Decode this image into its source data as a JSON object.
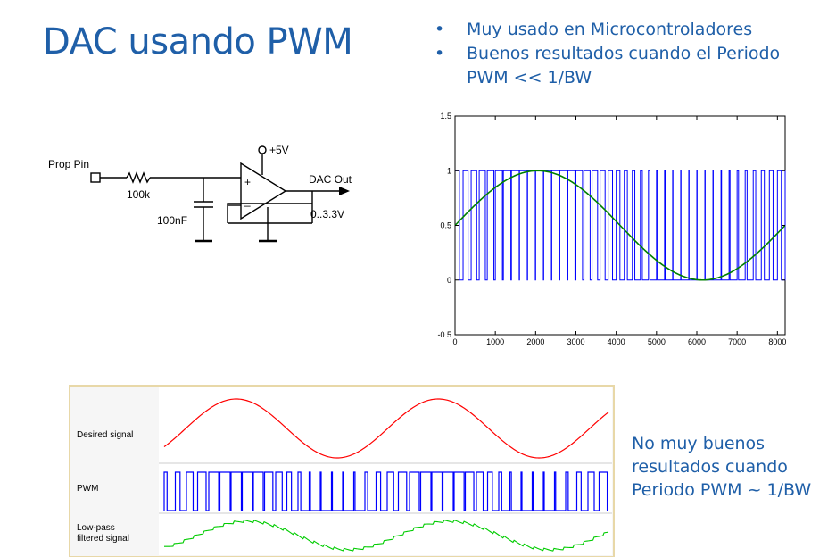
{
  "slide": {
    "title": "DAC usando PWM",
    "bullets": [
      "Muy usado en Microcontroladores",
      "Buenos resultados cuando el Periodo PWM << 1/BW"
    ],
    "note": "No muy buenos resultados cuando Periodo PWM ~ 1/BW"
  },
  "circuit": {
    "input_label": "Prop Pin",
    "resistor_label": "100k",
    "capacitor_label": "100nF",
    "supply_label": "+5V",
    "output_label": "DAC Out",
    "range_label": "0..3.3V",
    "plus_sign": "+",
    "minus_sign": "–"
  },
  "colors": {
    "accent": "#1f5fa8",
    "pwm": "#0000ff",
    "filtered_sine": "#008000",
    "desired": "#ff0000",
    "lowpass": "#00cc00"
  },
  "chart_data": [
    {
      "type": "line",
      "title": "",
      "xlabel": "",
      "ylabel": "",
      "xlim": [
        0,
        8192
      ],
      "ylim": [
        -0.5,
        1.5
      ],
      "x_ticks": [
        0,
        1000,
        2000,
        3000,
        4000,
        5000,
        6000,
        7000,
        8000
      ],
      "y_ticks": [
        -0.5,
        0,
        0.5,
        1,
        1.5
      ],
      "grid": false,
      "legend": "none",
      "series": [
        {
          "kind": "pwm",
          "color": "#0000ff",
          "x": [
            0,
            300,
            500,
            700,
            900,
            1100,
            1300,
            1500,
            1700,
            1900,
            2000,
            2100,
            2300,
            2500,
            2700,
            2900,
            3100,
            3300,
            3500,
            3700,
            3900,
            4100,
            4300,
            4500,
            4700,
            4900,
            5100,
            5300,
            5500,
            5700,
            5900,
            6100,
            6300,
            6500,
            6700,
            6900,
            7100,
            7300,
            7500,
            7700,
            7900,
            8192
          ],
          "values": [
            0.5,
            0.62,
            0.69,
            0.76,
            0.82,
            0.88,
            0.93,
            0.97,
            0.99,
            1.0,
            1.0,
            1.0,
            0.99,
            0.97,
            0.93,
            0.88,
            0.82,
            0.76,
            0.69,
            0.62,
            0.54,
            0.46,
            0.38,
            0.31,
            0.24,
            0.18,
            0.12,
            0.07,
            0.03,
            0.01,
            0.0,
            0.0,
            0.01,
            0.03,
            0.07,
            0.12,
            0.18,
            0.24,
            0.31,
            0.38,
            0.46,
            0.5
          ]
        },
        {
          "kind": "sine",
          "color": "#008000",
          "x": [
            0,
            1024,
            2048,
            3072,
            4096,
            5120,
            6144,
            7168,
            8192
          ],
          "values": [
            0.5,
            0.85,
            1.0,
            0.85,
            0.5,
            0.15,
            0.0,
            0.15,
            0.5
          ]
        }
      ]
    },
    {
      "type": "line",
      "title": "",
      "series_labels": [
        "Desired signal",
        "PWM",
        "Low-pass\nfiltered signal"
      ],
      "desired_signal": {
        "cycles": 2.2,
        "color": "#ff0000"
      },
      "pwm": {
        "color": "#0000ff",
        "period_samples": 26
      },
      "lowpass": {
        "color": "#00cc00"
      }
    }
  ]
}
